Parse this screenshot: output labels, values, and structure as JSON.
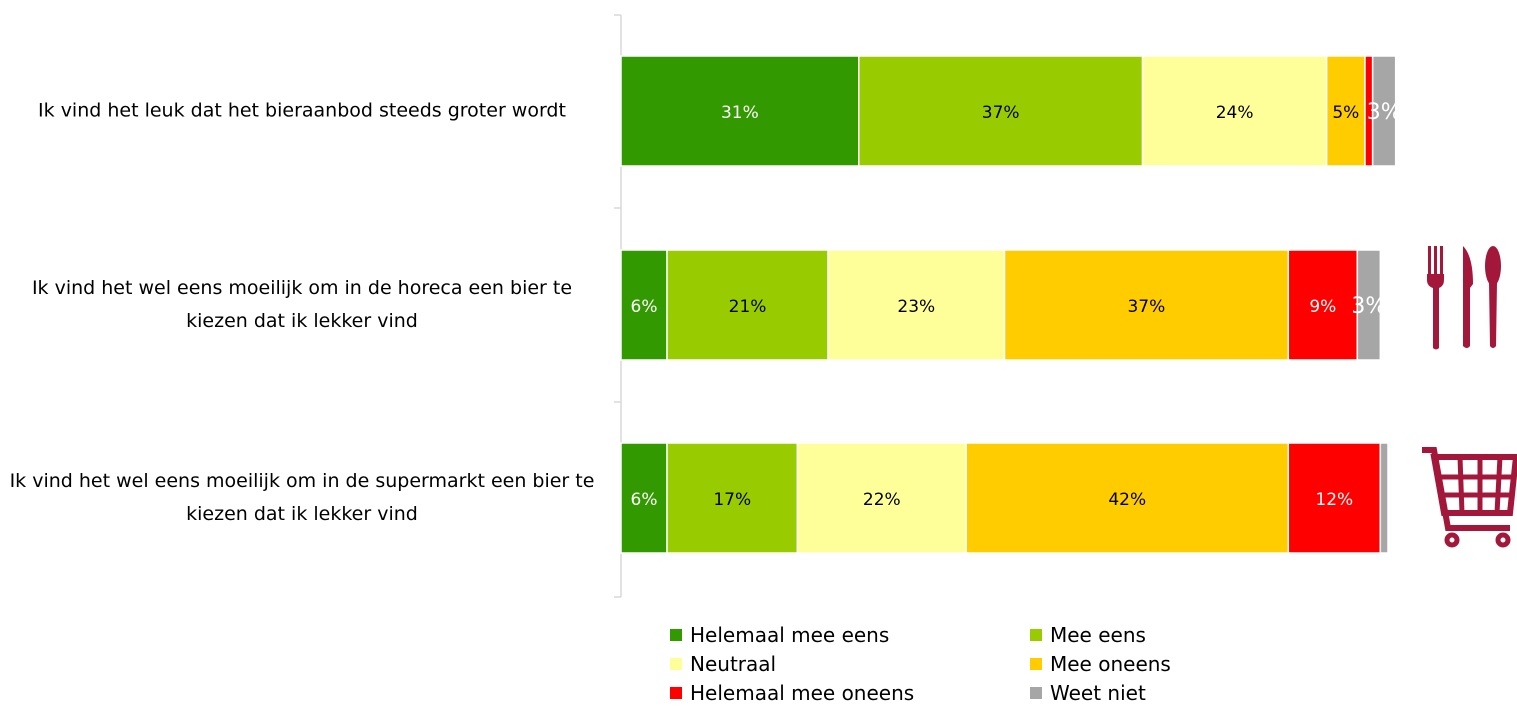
{
  "chart_data": {
    "type": "stacked_bar_horizontal",
    "categories": [
      "Ik vind het leuk dat het bieraanbod steeds groter wordt",
      "Ik vind het wel eens moeilijk om in de horeca een bier te kiezen dat ik lekker vind",
      "Ik vind het wel eens moeilijk om in de supermarkt een bier te kiezen dat ik lekker vind"
    ],
    "xlim": [
      0,
      100
    ],
    "series": [
      {
        "name": "Helemaal mee eens",
        "color": "#339900",
        "label_color": "#ffffff",
        "values": [
          31,
          6,
          6
        ],
        "value_labels": [
          "31%",
          "6%",
          "6%"
        ]
      },
      {
        "name": "Mee eens",
        "color": "#99cc00",
        "label_color": "#000000",
        "values": [
          37,
          21,
          17
        ],
        "value_labels": [
          "37%",
          "21%",
          "17%"
        ]
      },
      {
        "name": "Neutraal",
        "color": "#ffff99",
        "label_color": "#000000",
        "values": [
          24,
          23,
          22
        ],
        "value_labels": [
          "24%",
          "23%",
          "22%"
        ]
      },
      {
        "name": "Mee oneens",
        "color": "#ffcc00",
        "label_color": "#000000",
        "values": [
          5,
          37,
          42
        ],
        "value_labels": [
          "5%",
          "37%",
          "42%"
        ]
      },
      {
        "name": "Helemaal mee oneens",
        "color": "#ff0000",
        "label_color": "#ffffff",
        "values": [
          1,
          9,
          12
        ],
        "value_labels": [
          null,
          "9%",
          "12%"
        ]
      },
      {
        "name": "Weet niet",
        "color": "#a6a6a6",
        "label_color": "#ffffff",
        "values": [
          3,
          3,
          1
        ],
        "value_labels": [
          "3%",
          "3%",
          null
        ]
      }
    ]
  }
}
